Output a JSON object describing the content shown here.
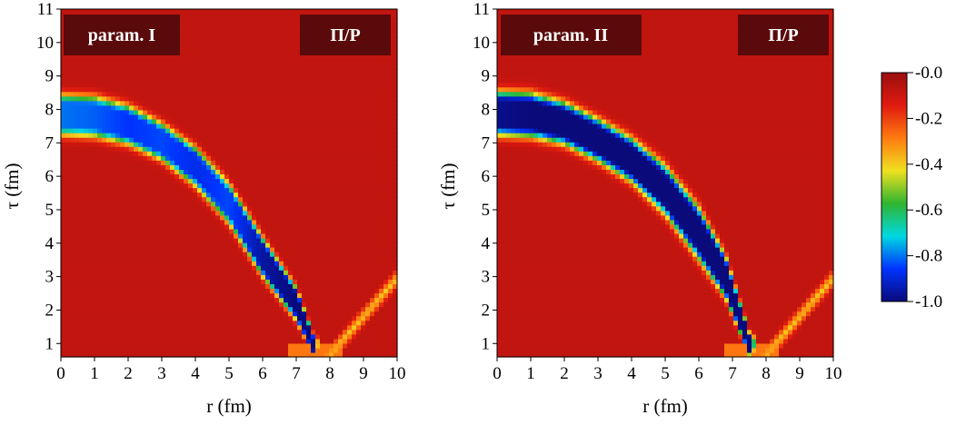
{
  "chart_data": [
    {
      "type": "heatmap",
      "panel_label": "param. I",
      "quantity_label": "Π/P",
      "xlabel": "r (fm)",
      "ylabel": "τ (fm)",
      "xlim": [
        0,
        10
      ],
      "ylim": [
        0.6,
        11
      ],
      "x_ticks": [
        0,
        1,
        2,
        3,
        4,
        5,
        6,
        7,
        8,
        9,
        10
      ],
      "y_ticks": [
        1,
        2,
        3,
        4,
        5,
        6,
        7,
        8,
        9,
        10,
        11
      ],
      "ridge": [
        [
          0,
          7.85
        ],
        [
          1,
          7.8
        ],
        [
          2,
          7.55
        ],
        [
          3,
          7.05
        ],
        [
          4,
          6.3
        ],
        [
          5,
          5.2
        ],
        [
          6,
          3.6
        ],
        [
          7,
          2.2
        ],
        [
          7.5,
          1.0
        ]
      ],
      "ridge_width": [
        1.25,
        1.25,
        1.2,
        1.15,
        1.2,
        1.25,
        1.2,
        1.0,
        0.6
      ],
      "ridge_depth": [
        -0.8,
        -0.82,
        -0.86,
        -0.84,
        -0.88,
        -0.84,
        -0.96,
        -1.0,
        -1.0
      ],
      "baseline": -0.08
    },
    {
      "type": "heatmap",
      "panel_label": "param. II",
      "quantity_label": "Π/P",
      "xlabel": "r (fm)",
      "ylabel": "τ (fm)",
      "xlim": [
        0,
        10
      ],
      "ylim": [
        0.6,
        11
      ],
      "x_ticks": [
        0,
        1,
        2,
        3,
        4,
        5,
        6,
        7,
        8,
        9,
        10
      ],
      "y_ticks": [
        1,
        2,
        3,
        4,
        5,
        6,
        7,
        8,
        9,
        10,
        11
      ],
      "ridge": [
        [
          0,
          7.9
        ],
        [
          1,
          7.85
        ],
        [
          2,
          7.6
        ],
        [
          3,
          7.1
        ],
        [
          4,
          6.5
        ],
        [
          5,
          5.6
        ],
        [
          6,
          4.3
        ],
        [
          6.8,
          3.0
        ],
        [
          7.5,
          1.0
        ]
      ],
      "ridge_width": [
        1.35,
        1.35,
        1.3,
        1.3,
        1.35,
        1.5,
        1.6,
        1.3,
        0.7
      ],
      "ridge_depth": [
        -0.98,
        -1.0,
        -1.0,
        -1.0,
        -1.0,
        -1.0,
        -1.0,
        -1.0,
        -1.0
      ],
      "baseline": -0.08
    }
  ],
  "colorbar": {
    "ticks": [
      "-0.0",
      "-0.2",
      "-0.4",
      "-0.6",
      "-0.8",
      "-1.0"
    ],
    "range": [
      -1.0,
      0.0
    ],
    "stops": [
      "#0a0a7a",
      "#0033ff",
      "#00d8e0",
      "#2fb52f",
      "#f0e020",
      "#ff7a10",
      "#e01a10",
      "#9a0e0e"
    ]
  }
}
